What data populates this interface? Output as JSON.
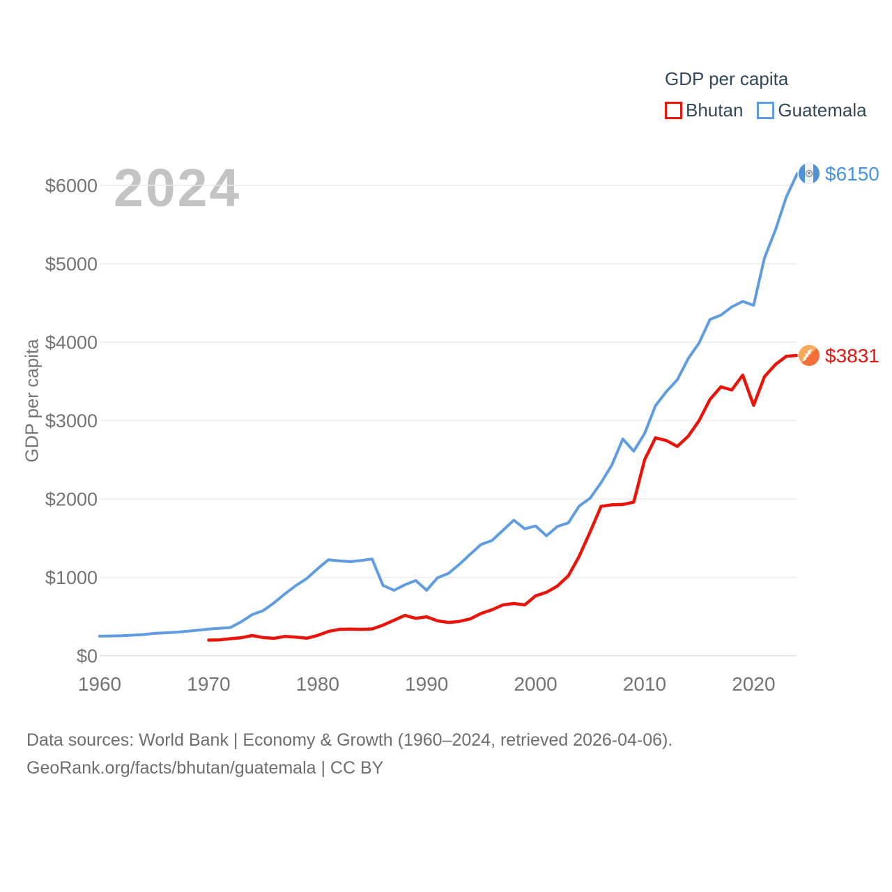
{
  "chart_data": {
    "type": "line",
    "title": "GDP per capita",
    "watermark_year": "2024",
    "ylabel": "GDP per capita",
    "grid": "horizontal",
    "legend_position": "top-right",
    "xlim": [
      1960,
      2024
    ],
    "ylim": [
      0,
      6400
    ],
    "x_ticks": [
      1960,
      1970,
      1980,
      1990,
      2000,
      2010,
      2020
    ],
    "y_ticks": [
      {
        "value": 0,
        "label": "$0"
      },
      {
        "value": 1000,
        "label": "$1000"
      },
      {
        "value": 2000,
        "label": "$2000"
      },
      {
        "value": 3000,
        "label": "$3000"
      },
      {
        "value": 4000,
        "label": "$4000"
      },
      {
        "value": 5000,
        "label": "$5000"
      },
      {
        "value": 6000,
        "label": "$6000"
      }
    ],
    "series": [
      {
        "name": "Bhutan",
        "color": "#e9150b",
        "end_label": "$3831",
        "end_value": 3831,
        "flag": "bhutan-flag",
        "x_start": 1970,
        "x": [
          1970,
          1971,
          1972,
          1973,
          1974,
          1975,
          1976,
          1977,
          1978,
          1979,
          1980,
          1981,
          1982,
          1983,
          1984,
          1985,
          1986,
          1987,
          1988,
          1989,
          1990,
          1991,
          1992,
          1993,
          1994,
          1995,
          1996,
          1997,
          1998,
          1999,
          2000,
          2001,
          2002,
          2003,
          2004,
          2005,
          2006,
          2007,
          2008,
          2009,
          2010,
          2011,
          2012,
          2013,
          2014,
          2015,
          2016,
          2017,
          2018,
          2019,
          2020,
          2021,
          2022,
          2023,
          2024
        ],
        "values": [
          200,
          203,
          218,
          230,
          258,
          232,
          222,
          247,
          238,
          224,
          260,
          310,
          337,
          340,
          337,
          342,
          390,
          452,
          515,
          477,
          497,
          445,
          425,
          438,
          470,
          540,
          587,
          649,
          667,
          649,
          764,
          810,
          890,
          1020,
          1270,
          1580,
          1905,
          1925,
          1930,
          1960,
          2500,
          2780,
          2745,
          2670,
          2800,
          3000,
          3270,
          3430,
          3390,
          3580,
          3195,
          3560,
          3715,
          3820,
          3831
        ]
      },
      {
        "name": "Guatemala",
        "color": "#5f9ce0",
        "end_label": "$6150",
        "end_value": 6150,
        "flag": "guatemala-flag",
        "x_start": 1960,
        "x": [
          1960,
          1961,
          1962,
          1963,
          1964,
          1965,
          1966,
          1967,
          1968,
          1969,
          1970,
          1971,
          1972,
          1973,
          1974,
          1975,
          1976,
          1977,
          1978,
          1979,
          1980,
          1981,
          1982,
          1983,
          1984,
          1985,
          1986,
          1987,
          1988,
          1989,
          1990,
          1991,
          1992,
          1993,
          1994,
          1995,
          1996,
          1997,
          1998,
          1999,
          2000,
          2001,
          2002,
          2003,
          2004,
          2005,
          2006,
          2007,
          2008,
          2009,
          2010,
          2011,
          2012,
          2013,
          2014,
          2015,
          2016,
          2017,
          2018,
          2019,
          2020,
          2021,
          2022,
          2023,
          2024
        ],
        "values": [
          250,
          252,
          255,
          262,
          270,
          285,
          292,
          300,
          312,
          325,
          340,
          350,
          360,
          435,
          525,
          575,
          675,
          790,
          895,
          985,
          1110,
          1225,
          1210,
          1200,
          1215,
          1235,
          897,
          835,
          905,
          960,
          836,
          995,
          1050,
          1165,
          1295,
          1420,
          1470,
          1600,
          1730,
          1620,
          1655,
          1530,
          1650,
          1695,
          1910,
          2010,
          2205,
          2435,
          2765,
          2610,
          2835,
          3190,
          3370,
          3520,
          3790,
          3990,
          4290,
          4345,
          4450,
          4520,
          4470,
          5075,
          5430,
          5850,
          6150
        ]
      }
    ]
  },
  "footer": {
    "line1": "Data sources: World Bank | Economy & Growth (1960–2024, retrieved 2026-04-06).",
    "line2": "GeoRank.org/facts/bhutan/guatemala | CC BY"
  }
}
